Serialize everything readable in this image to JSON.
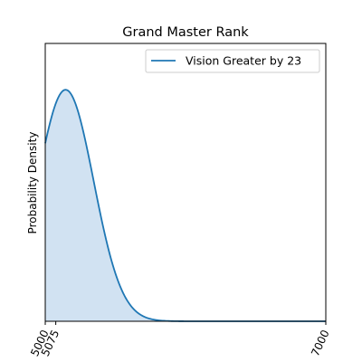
{
  "chart_data": {
    "type": "area",
    "title": "Grand Master Rank",
    "xlabel": "",
    "ylabel": "Probability Density",
    "xlim": [
      5000,
      7000
    ],
    "ylim": [
      0,
      1.2
    ],
    "x_ticks": [
      "5000",
      "5075",
      "7000"
    ],
    "x_tick_values": [
      5000,
      5075,
      7000
    ],
    "y_ticks_visible": false,
    "legend": {
      "position": "top-right",
      "entries": [
        "Vision Greater by 23"
      ]
    },
    "series": [
      {
        "name": "Vision Greater by 23",
        "color": "#1f77b4",
        "fill_color": "#c6dbef",
        "distribution": "normal",
        "mean": 5145,
        "std": 200,
        "peak": 1.0
      }
    ]
  }
}
